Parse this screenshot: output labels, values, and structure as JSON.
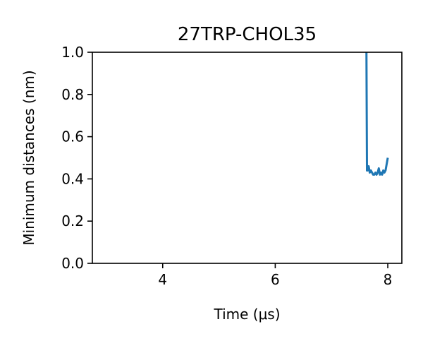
{
  "chart_data": {
    "type": "line",
    "title": "27TRP-CHOL35",
    "xlabel": "Time ($\\mu$s)",
    "ylabel": "Minimum distances (nm)",
    "xlim": [
      2.75,
      8.25
    ],
    "ylim": [
      0.0,
      1.0
    ],
    "xticks": [
      4,
      6,
      8
    ],
    "yticks": [
      0.0,
      0.2,
      0.4,
      0.6,
      0.8,
      1.0
    ],
    "grid": false,
    "series": [
      {
        "color": "#1f77b4",
        "x": [
          7.62,
          7.63,
          7.64,
          7.66,
          7.68,
          7.7,
          7.72,
          7.74,
          7.76,
          7.78,
          7.8,
          7.82,
          7.84,
          7.86,
          7.88,
          7.9,
          7.92,
          7.94,
          7.96,
          7.98,
          8.0
        ],
        "y": [
          1.05,
          0.44,
          0.44,
          0.46,
          0.43,
          0.44,
          0.43,
          0.42,
          0.42,
          0.43,
          0.42,
          0.43,
          0.45,
          0.42,
          0.43,
          0.42,
          0.44,
          0.43,
          0.44,
          0.47,
          0.5
        ]
      }
    ]
  }
}
